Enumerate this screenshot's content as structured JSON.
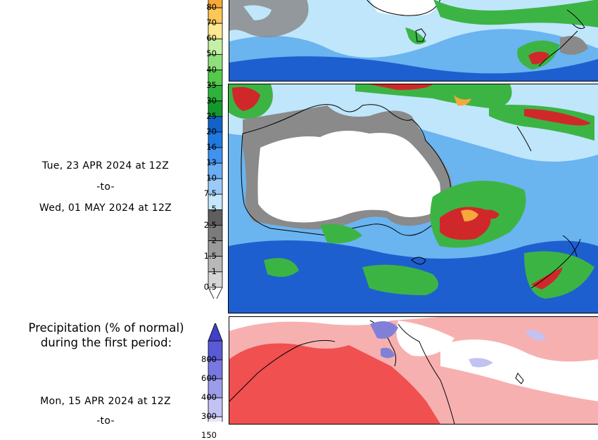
{
  "precip_panel": {
    "period": {
      "start": "Tue, 23 APR 2024 at 12Z",
      "separator": "-to-",
      "end": "Wed, 01 MAY 2024 at 12Z"
    },
    "colorbar": {
      "ticks": [
        "80",
        "70",
        "60",
        "50",
        "40",
        "35",
        "30",
        "25",
        "20",
        "16",
        "13",
        "10",
        "7.5",
        "5",
        "2.5",
        "2",
        "1.5",
        "1",
        "0.5"
      ],
      "colors": {
        "80": "#f6a83a",
        "70": "#fbc857",
        "60": "#fde892",
        "50": "#c4f0a6",
        "40": "#8ee07c",
        "35": "#54c94c",
        "30": "#2fb23c",
        "25": "#14972d",
        "20": "#1362c8",
        "16": "#1f7ae0",
        "13": "#3f92f0",
        "10": "#69aef5",
        "7.5": "#9ccaf8",
        "5": "#c5e6fb",
        "2.5": "#5e5e5e",
        "2": "#7b7b7b",
        "1.5": "#9a9a9a",
        "1": "#b8b8b8",
        "0.5": "#d6d6d6"
      }
    }
  },
  "normal_panel": {
    "heading_line1": "Precipitation (% of normal)",
    "heading_line2": "during the first period:",
    "period": {
      "start": "Mon, 15 APR 2024 at 12Z",
      "separator": "-to-"
    },
    "colorbar": {
      "ticks": [
        "800",
        "600",
        "400",
        "300",
        "150"
      ],
      "colors": {
        "800": "#5a5ad6",
        "600": "#7878e0",
        "400": "#9c9ceb",
        "300": "#c2c2f3",
        "150": "#e6e6fb",
        "arrow": "#4040c8"
      }
    }
  },
  "map_colors": {
    "land_dry": "#ffffff",
    "ocean_light": "#bfe6fb",
    "ocean_mid": "#6ab4f0",
    "ocean_dark": "#1e5fd0",
    "green": "#3cb444",
    "red": "#d0282a",
    "grey": "#8a8a8a",
    "pct_red": "#f05050",
    "pct_pink": "#f7b0b0",
    "pct_blue": "#8080d8"
  }
}
